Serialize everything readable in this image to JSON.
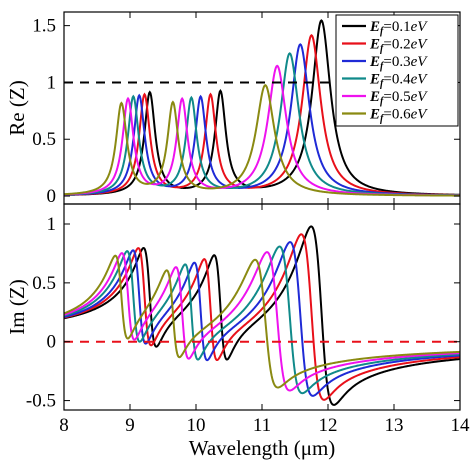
{
  "chart_data": [
    {
      "type": "line",
      "panel": "top",
      "ylabel": "Re (Z)",
      "xlim": [
        8,
        14
      ],
      "ylim": [
        -0.07,
        1.62
      ],
      "xticks": [
        8,
        9,
        10,
        11,
        12,
        13,
        14
      ],
      "yticks": [
        0,
        0.5,
        1,
        1.5
      ],
      "xtick_labels_shown": false,
      "reference_line": {
        "y": 1,
        "color": "#000000",
        "style": "dashed"
      },
      "legend": {
        "placement": "top-right",
        "entries": [
          {
            "prefix": "E",
            "sub": "f",
            "suffix": "=0.1",
            "unit": "eV",
            "color": "#000000"
          },
          {
            "prefix": "E",
            "sub": "f",
            "suffix": "=0.2",
            "unit": "eV",
            "color": "#e8101a"
          },
          {
            "prefix": "E",
            "sub": "f",
            "suffix": "=0.3",
            "unit": "eV",
            "color": "#1f2ad6"
          },
          {
            "prefix": "E",
            "sub": "f",
            "suffix": "=0.4",
            "unit": "eV",
            "color": "#108a8a"
          },
          {
            "prefix": "E",
            "sub": "f",
            "suffix": "=0.5",
            "unit": "eV",
            "color": "#ee12ee"
          },
          {
            "prefix": "E",
            "sub": "f",
            "suffix": "=0.6",
            "unit": "eV",
            "color": "#8a8a12"
          }
        ]
      },
      "series": [
        {
          "color": "#000000",
          "peaks": [
            {
              "x": 9.3,
              "y": 0.9
            },
            {
              "x": 10.37,
              "y": 0.9
            },
            {
              "x": 11.9,
              "y": 1.54
            }
          ]
        },
        {
          "color": "#e8101a",
          "peaks": [
            {
              "x": 9.22,
              "y": 0.88
            },
            {
              "x": 10.22,
              "y": 0.87
            },
            {
              "x": 11.75,
              "y": 1.41
            }
          ]
        },
        {
          "color": "#1f2ad6",
          "peaks": [
            {
              "x": 9.14,
              "y": 0.87
            },
            {
              "x": 10.07,
              "y": 0.85
            },
            {
              "x": 11.58,
              "y": 1.33
            }
          ]
        },
        {
          "color": "#108a8a",
          "peaks": [
            {
              "x": 9.05,
              "y": 0.86
            },
            {
              "x": 9.93,
              "y": 0.84
            },
            {
              "x": 11.42,
              "y": 1.25
            }
          ]
        },
        {
          "color": "#ee12ee",
          "peaks": [
            {
              "x": 8.97,
              "y": 0.84
            },
            {
              "x": 9.79,
              "y": 0.83
            },
            {
              "x": 11.23,
              "y": 1.14
            }
          ]
        },
        {
          "color": "#8a8a12",
          "peaks": [
            {
              "x": 8.87,
              "y": 0.8
            },
            {
              "x": 9.65,
              "y": 0.8
            },
            {
              "x": 11.05,
              "y": 0.97
            }
          ]
        }
      ]
    },
    {
      "type": "line",
      "panel": "bottom",
      "xlabel": "Wavelength (μm)",
      "ylabel": "Im (Z)",
      "xlim": [
        8,
        14
      ],
      "ylim": [
        -0.58,
        1.17
      ],
      "xticks": [
        8,
        9,
        10,
        11,
        12,
        13,
        14
      ],
      "yticks": [
        -0.5,
        0,
        0.5,
        1
      ],
      "reference_line": {
        "y": 0,
        "color": "#e8101a",
        "style": "dashed"
      },
      "series": [
        {
          "color": "#000000",
          "features": [
            {
              "x": 9.3,
              "min": -0.27,
              "max": 0.6
            },
            {
              "x": 10.37,
              "min": -0.3,
              "max": 0.62
            },
            {
              "x": 11.9,
              "min": -0.42,
              "max": 1.1
            }
          ]
        },
        {
          "color": "#e8101a",
          "features": [
            {
              "x": 9.22,
              "min": -0.26,
              "max": 0.6
            },
            {
              "x": 10.22,
              "min": -0.29,
              "max": 0.6
            },
            {
              "x": 11.75,
              "min": -0.38,
              "max": 1.03
            }
          ]
        },
        {
          "color": "#1f2ad6",
          "features": [
            {
              "x": 9.14,
              "min": -0.25,
              "max": 0.58
            },
            {
              "x": 10.07,
              "min": -0.28,
              "max": 0.58
            },
            {
              "x": 11.58,
              "min": -0.35,
              "max": 0.96
            }
          ]
        },
        {
          "color": "#108a8a",
          "features": [
            {
              "x": 9.05,
              "min": -0.24,
              "max": 0.57
            },
            {
              "x": 9.93,
              "min": -0.27,
              "max": 0.57
            },
            {
              "x": 11.42,
              "min": -0.33,
              "max": 0.92
            }
          ]
        },
        {
          "color": "#ee12ee",
          "features": [
            {
              "x": 8.97,
              "min": -0.23,
              "max": 0.55
            },
            {
              "x": 9.79,
              "min": -0.26,
              "max": 0.55
            },
            {
              "x": 11.23,
              "min": -0.31,
              "max": 0.87
            }
          ]
        },
        {
          "color": "#8a8a12",
          "features": [
            {
              "x": 8.87,
              "min": -0.22,
              "max": 0.53
            },
            {
              "x": 9.65,
              "min": -0.24,
              "max": 0.53
            },
            {
              "x": 11.05,
              "min": -0.29,
              "max": 0.8
            }
          ]
        }
      ]
    }
  ]
}
